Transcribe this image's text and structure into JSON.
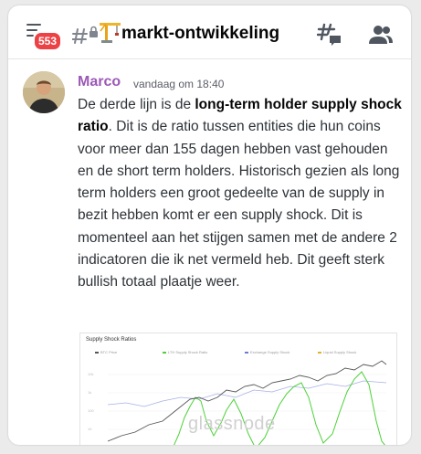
{
  "header": {
    "badge": "553",
    "channel_emoji": "crane-icon",
    "channel_name": "markt-ontwikkeling"
  },
  "message": {
    "author": "Marco",
    "author_color": "#9b59b6",
    "timestamp": "vandaag om 18:40",
    "text_intro": "De derde lijn is de ",
    "text_bold": "long-term holder supply shock ratio",
    "text_rest": ". Dit is de ratio tussen entities die hun coins voor meer dan 155 dagen hebben vast gehouden en de short term holders. Historisch gezien als long term holders een groot gedeelte van de supply in bezit hebben komt er een supply shock. Dit is momenteel aan het stijgen samen met de andere 2 indicatoren die ik net vermeld heb. Dit geeft sterk bullish totaal plaatje weer."
  },
  "attachment": {
    "title": "Supply Shock Ratios",
    "watermark": "glassnode",
    "legend": [
      "BTC Price",
      "LTH Supply Shock Ratio",
      "Exchange Supply Shock",
      "Liquid Supply Shock"
    ],
    "colors": {
      "price": "#555555",
      "green": "#4cd137",
      "blue": "#6a7bd6"
    }
  }
}
